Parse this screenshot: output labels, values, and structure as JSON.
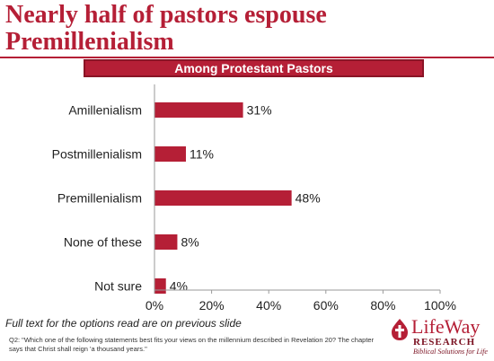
{
  "slide": {
    "title": "Nearly half of pastors espouse Premillenialism",
    "subtitle": "Among Protestant Pastors",
    "footnote": "Full text for the options read are on previous slide",
    "question": "Q2: \"Which one of the following statements best fits your views on the millennium described in Revelation 20? The chapter says that Christ shall reign 'a thousand years.\""
  },
  "logo": {
    "name": "LifeWay",
    "research": "RESEARCH",
    "tagline": "Biblical Solutions for Life",
    "icon": "flame-cross-icon"
  },
  "colors": {
    "accent": "#b51f36",
    "bar": "#b51f36",
    "axis": "#9a9a9a",
    "text": "#222222"
  },
  "chart_data": {
    "type": "bar",
    "orientation": "horizontal",
    "categories": [
      "Amillenialism",
      "Postmillenialism",
      "Premillenialism",
      "None of these",
      "Not sure"
    ],
    "values": [
      31,
      11,
      48,
      8,
      4
    ],
    "value_labels": [
      "31%",
      "11%",
      "48%",
      "8%",
      "4%"
    ],
    "x_ticks": [
      "0%",
      "20%",
      "40%",
      "60%",
      "80%",
      "100%"
    ],
    "xlim": [
      0,
      100
    ],
    "grid": false,
    "legend": "none"
  }
}
